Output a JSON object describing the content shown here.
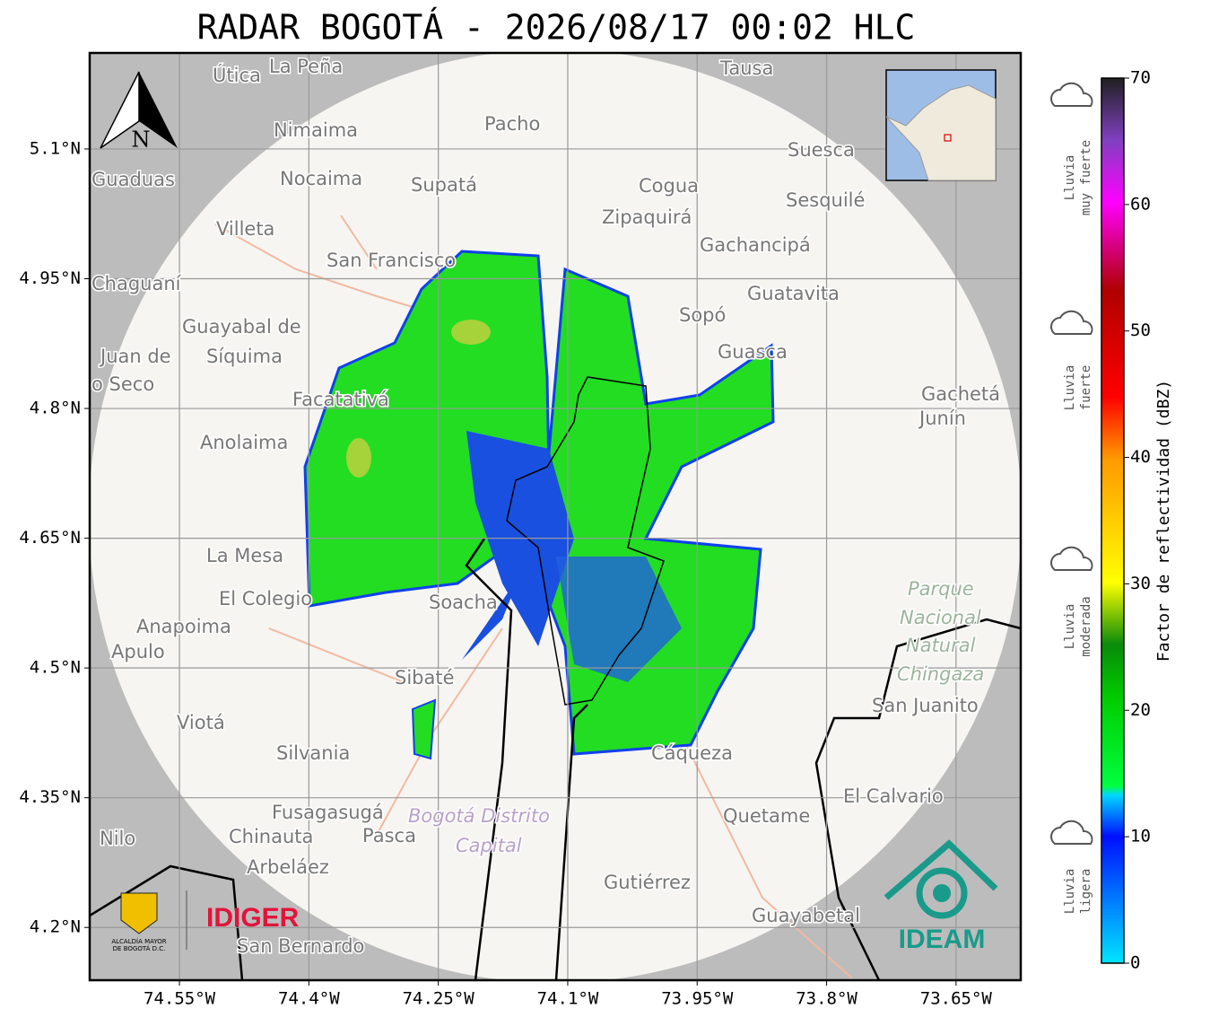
{
  "title": "RADAR BOGOTÁ - 2026/08/17 00:02 HLC",
  "map": {
    "xlim": [
      -74.654,
      -73.575
    ],
    "ylim": [
      4.139,
      5.211
    ],
    "xticks": [
      {
        "value": -74.55,
        "label": "74.55°W"
      },
      {
        "value": -74.4,
        "label": "74.4°W"
      },
      {
        "value": -74.25,
        "label": "74.25°W"
      },
      {
        "value": -74.1,
        "label": "74.1°W"
      },
      {
        "value": -73.95,
        "label": "73.95°W"
      },
      {
        "value": -73.8,
        "label": "73.8°W"
      },
      {
        "value": -73.65,
        "label": "73.65°W"
      }
    ],
    "yticks": [
      {
        "value": 5.1,
        "label": "5.1°N"
      },
      {
        "value": 4.95,
        "label": "4.95°N"
      },
      {
        "value": 4.8,
        "label": "4.8°N"
      },
      {
        "value": 4.65,
        "label": "4.65°N"
      },
      {
        "value": 4.5,
        "label": "4.5°N"
      },
      {
        "value": 4.35,
        "label": "4.35°N"
      },
      {
        "value": 4.2,
        "label": "4.2°N"
      }
    ],
    "north": "N",
    "places": [
      "Útica",
      "La Peña",
      "Tausa",
      "Pacho",
      "Nimaima",
      "Guaduas",
      "Nocaima",
      "Supatá",
      "Cogua",
      "Suesca",
      "Sesquilé",
      "Zipaquirá",
      "Villeta",
      "Gachancipá",
      "San Francisco",
      "Chaguaní",
      "Guatavita",
      "Sopó",
      "Guayabal de",
      "Síquima",
      "Juan de",
      "o Seco",
      "Guasca",
      "Facatativá",
      "Gachetá",
      "Junín",
      "Anolaima",
      "La Mesa",
      "El Colegio",
      "Soacha",
      "Anapoima",
      "Apulo",
      "Sibaté",
      "San Juanito",
      "Viotá",
      "Silvania",
      "Cáqueza",
      "El Calvario",
      "Fusagasugá",
      "Quetame",
      "Nilo",
      "Chinauta",
      "Pasca",
      "Arbeláez",
      "Gutiérrez",
      "Guayabetal",
      "San Bernardo"
    ],
    "areas": [
      "Parque",
      "Nacional",
      "Natural",
      "Chingaza",
      "Bogotá Distrito",
      "Capital"
    ]
  },
  "colorbar": {
    "label": "Factor de reflectividad (dBZ)",
    "lim": [
      0,
      70
    ],
    "ticks": [
      0,
      10,
      20,
      30,
      40,
      50,
      60,
      70
    ]
  },
  "categories": [
    {
      "lines": [
        "Lluvia",
        "muy fuerte"
      ]
    },
    {
      "lines": [
        "Lluvia",
        "fuerte"
      ]
    },
    {
      "lines": [
        "Lluvia",
        "moderada"
      ]
    },
    {
      "lines": [
        "Lluvia",
        "ligera"
      ]
    }
  ],
  "logos": {
    "alcaldia": [
      "ALCALDÍA MAYOR",
      "DE BOGOTÁ D.C."
    ],
    "idiger": "IDIGER",
    "ideam": "IDEAM"
  }
}
